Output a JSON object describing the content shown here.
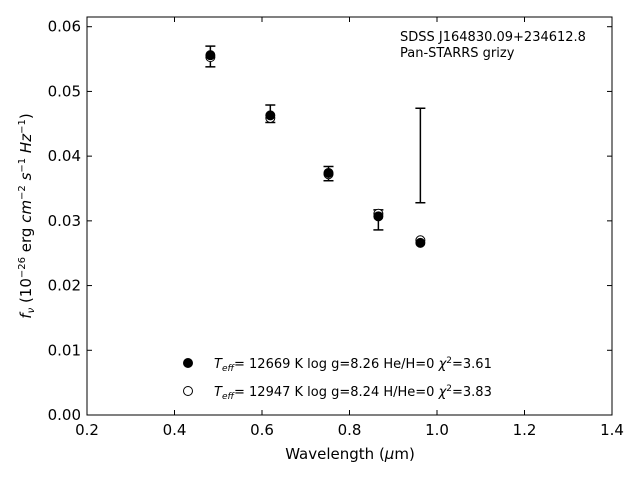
{
  "chart_data": {
    "type": "scatter",
    "annotation": [
      "SDSS J164830.09+234612.8",
      "Pan-STARRS grizy"
    ],
    "xlabel": "Wavelength (μm)",
    "ylabel": "f_ν (10^-26 erg cm^-2 s^-1 Hz^-1)",
    "xlim": [
      0.2,
      1.4
    ],
    "ylim": [
      0.0,
      0.0615
    ],
    "xticks": [
      "0.2",
      "0.4",
      "0.6",
      "0.8",
      "1.0",
      "1.2",
      "1.4"
    ],
    "yticks": [
      "0.00",
      "0.01",
      "0.02",
      "0.03",
      "0.04",
      "0.05",
      "0.06"
    ],
    "grid": false,
    "legend_position": "bottom-center",
    "observed": {
      "x": [
        0.482,
        0.619,
        0.752,
        0.866,
        0.962
      ],
      "y_low": [
        0.0538,
        0.0452,
        0.0362,
        0.0286,
        0.0328
      ],
      "y_high": [
        0.057,
        0.0479,
        0.0384,
        0.0317,
        0.0474
      ]
    },
    "series": [
      {
        "name": "T_eff= 12669 K  log g=8.26  He/H=0  χ²=3.61",
        "marker": "filled-circle",
        "x": [
          0.482,
          0.619,
          0.752,
          0.866,
          0.962
        ],
        "y": [
          0.0556,
          0.0463,
          0.0374,
          0.0307,
          0.0266
        ]
      },
      {
        "name": "T_eff= 12947 K  log g=8.24  H/He=0  χ²=3.83",
        "marker": "open-circle",
        "x": [
          0.482,
          0.619,
          0.752,
          0.866,
          0.962
        ],
        "y": [
          0.0553,
          0.0459,
          0.0372,
          0.0311,
          0.027
        ]
      }
    ]
  }
}
